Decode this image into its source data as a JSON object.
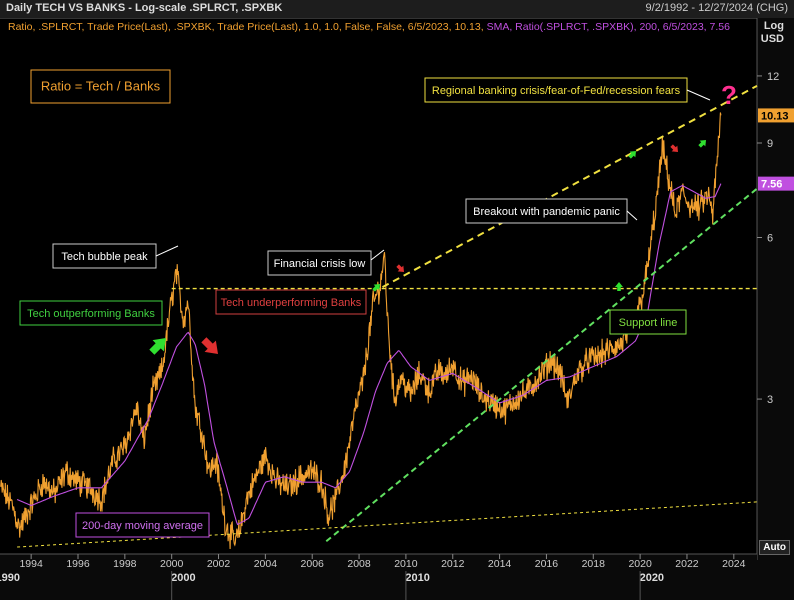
{
  "header": {
    "title": "Daily TECH VS BANKS - Log-scale .SPLRCT, .SPXBK",
    "date_range": "9/2/1992 - 12/27/2024 (CHG)"
  },
  "legend": {
    "series_line": "Ratio, .SPLRCT, Trade Price(Last), .SPXBK, Trade Price(Last),  1.0, 1.0, False, False, 6/5/2023, 10.13,",
    "sma_line": "SMA, Ratio(.SPLRCT, .SPXBK),  200, 6/5/2023, 7.56"
  },
  "axis": {
    "unit_top": "Log",
    "unit_bottom": "USD",
    "auto_button": "Auto"
  },
  "colors": {
    "ratio": "#f0a030",
    "sma": "#c050e0",
    "resistance": "#f0e040",
    "support": "#60e060",
    "up_arrow": "#30e030",
    "down_arrow": "#e03030"
  },
  "chart_data": {
    "type": "line",
    "y_scale": "log",
    "ylim": [
      1.55,
      14
    ],
    "xlim": [
      1992.67,
      2024.99
    ],
    "y_ticks": [
      3,
      6,
      9,
      12
    ],
    "x_year_ticks": [
      "1994",
      "1996",
      "1998",
      "2000",
      "2002",
      "2004",
      "2006",
      "2008",
      "2010",
      "2012",
      "2014",
      "2016",
      "2018",
      "2020",
      "2022",
      "2024"
    ],
    "x_decade_labels": [
      "1990",
      "2000",
      "2010",
      "2020"
    ],
    "last_values": {
      "ratio": "10.13",
      "sma": "7.56"
    },
    "ratio_anchors": [
      [
        1992.7,
        2.05
      ],
      [
        1993.2,
        1.9
      ],
      [
        1993.5,
        1.72
      ],
      [
        1994.0,
        1.9
      ],
      [
        1994.5,
        2.1
      ],
      [
        1995.0,
        2.0
      ],
      [
        1995.5,
        2.2
      ],
      [
        1996.0,
        2.1
      ],
      [
        1996.5,
        2.05
      ],
      [
        1997.0,
        1.95
      ],
      [
        1997.5,
        2.3
      ],
      [
        1998.0,
        2.45
      ],
      [
        1998.5,
        2.9
      ],
      [
        1998.8,
        2.5
      ],
      [
        1999.2,
        3.1
      ],
      [
        1999.6,
        3.4
      ],
      [
        1999.9,
        4.3
      ],
      [
        2000.2,
        5.2
      ],
      [
        2000.5,
        4.2
      ],
      [
        2000.7,
        4.6
      ],
      [
        2001.0,
        2.9
      ],
      [
        2001.3,
        2.6
      ],
      [
        2001.6,
        2.2
      ],
      [
        2001.9,
        2.3
      ],
      [
        2002.3,
        1.75
      ],
      [
        2002.7,
        1.62
      ],
      [
        2002.9,
        1.7
      ],
      [
        2003.2,
        1.95
      ],
      [
        2003.6,
        2.15
      ],
      [
        2004.0,
        2.35
      ],
      [
        2004.5,
        2.1
      ],
      [
        2005.0,
        2.05
      ],
      [
        2005.5,
        2.15
      ],
      [
        2006.0,
        2.2
      ],
      [
        2006.4,
        2.1
      ],
      [
        2006.7,
        1.82
      ],
      [
        2007.0,
        1.95
      ],
      [
        2007.4,
        2.25
      ],
      [
        2007.8,
        2.8
      ],
      [
        2008.2,
        3.3
      ],
      [
        2008.6,
        4.5
      ],
      [
        2008.9,
        4.9
      ],
      [
        2009.1,
        5.6
      ],
      [
        2009.2,
        4.3
      ],
      [
        2009.5,
        3.0
      ],
      [
        2009.8,
        3.3
      ],
      [
        2010.2,
        3.05
      ],
      [
        2010.6,
        3.35
      ],
      [
        2011.0,
        3.1
      ],
      [
        2011.4,
        3.4
      ],
      [
        2011.7,
        3.3
      ],
      [
        2012.0,
        3.5
      ],
      [
        2012.4,
        3.2
      ],
      [
        2012.8,
        3.3
      ],
      [
        2013.2,
        3.05
      ],
      [
        2013.7,
        2.95
      ],
      [
        2014.2,
        2.85
      ],
      [
        2014.7,
        3.0
      ],
      [
        2015.2,
        3.1
      ],
      [
        2015.7,
        3.3
      ],
      [
        2016.2,
        3.55
      ],
      [
        2016.6,
        3.35
      ],
      [
        2016.9,
        2.95
      ],
      [
        2017.3,
        3.35
      ],
      [
        2017.8,
        3.55
      ],
      [
        2018.2,
        3.6
      ],
      [
        2018.7,
        3.7
      ],
      [
        2019.2,
        3.8
      ],
      [
        2019.6,
        4.05
      ],
      [
        2020.0,
        4.5
      ],
      [
        2020.3,
        5.2
      ],
      [
        2020.7,
        7.0
      ],
      [
        2020.95,
        8.8
      ],
      [
        2021.2,
        7.8
      ],
      [
        2021.5,
        6.6
      ],
      [
        2021.8,
        7.3
      ],
      [
        2022.1,
        6.9
      ],
      [
        2022.5,
        6.8
      ],
      [
        2022.9,
        7.2
      ],
      [
        2023.1,
        6.6
      ],
      [
        2023.3,
        8.5
      ],
      [
        2023.45,
        10.13
      ]
    ],
    "sma_anchors": [
      [
        1993.4,
        1.95
      ],
      [
        1994.0,
        1.9
      ],
      [
        1995.0,
        1.98
      ],
      [
        1996.0,
        2.05
      ],
      [
        1997.0,
        2.05
      ],
      [
        1998.0,
        2.3
      ],
      [
        1999.0,
        2.75
      ],
      [
        1999.6,
        3.2
      ],
      [
        2000.2,
        3.75
      ],
      [
        2000.7,
        4.0
      ],
      [
        2001.0,
        3.8
      ],
      [
        2001.4,
        3.2
      ],
      [
        2001.8,
        2.5
      ],
      [
        2002.3,
        2.1
      ],
      [
        2002.8,
        1.75
      ],
      [
        2003.3,
        1.8
      ],
      [
        2004.0,
        2.1
      ],
      [
        2004.8,
        2.15
      ],
      [
        2005.6,
        2.1
      ],
      [
        2006.4,
        2.1
      ],
      [
        2007.0,
        2.05
      ],
      [
        2007.6,
        2.2
      ],
      [
        2008.2,
        2.6
      ],
      [
        2008.7,
        3.1
      ],
      [
        2009.2,
        3.5
      ],
      [
        2009.7,
        3.7
      ],
      [
        2010.2,
        3.45
      ],
      [
        2011.0,
        3.25
      ],
      [
        2012.0,
        3.35
      ],
      [
        2013.0,
        3.15
      ],
      [
        2014.0,
        2.95
      ],
      [
        2015.0,
        3.05
      ],
      [
        2016.0,
        3.25
      ],
      [
        2017.0,
        3.3
      ],
      [
        2018.0,
        3.45
      ],
      [
        2019.0,
        3.6
      ],
      [
        2019.8,
        3.85
      ],
      [
        2020.3,
        4.3
      ],
      [
        2020.8,
        5.8
      ],
      [
        2021.3,
        7.3
      ],
      [
        2021.8,
        7.5
      ],
      [
        2022.3,
        7.3
      ],
      [
        2022.8,
        7.1
      ],
      [
        2023.2,
        7.15
      ],
      [
        2023.45,
        7.56
      ]
    ],
    "trendlines": [
      {
        "name": "resistance",
        "from": [
          2009.0,
          4.85
        ],
        "to": [
          2024.99,
          11.5
        ]
      },
      {
        "name": "bubble-peak-horizontal",
        "from": [
          2000.0,
          4.82
        ],
        "to": [
          2024.99,
          4.82
        ]
      },
      {
        "name": "support",
        "from": [
          2006.6,
          1.63
        ],
        "to": [
          2024.99,
          7.4
        ]
      },
      {
        "name": "long-term-base",
        "from": [
          1993.4,
          1.59
        ],
        "to": [
          2024.99,
          1.93
        ]
      }
    ],
    "annotations": [
      {
        "key": "ratio_box",
        "text": "Ratio = Tech / Banks"
      },
      {
        "key": "tech_bubble",
        "text": "Tech bubble peak"
      },
      {
        "key": "outperform",
        "text": "Tech outperforming Banks"
      },
      {
        "key": "underperform",
        "text": "Tech underperforming Banks"
      },
      {
        "key": "fin_crisis",
        "text": "Financial crisis low"
      },
      {
        "key": "breakout",
        "text": "Breakout with pandemic panic"
      },
      {
        "key": "regional",
        "text": "Regional banking crisis/fear-of-Fed/recession fears"
      },
      {
        "key": "support",
        "text": "Support line"
      },
      {
        "key": "sma200",
        "text": "200-day moving average"
      },
      {
        "key": "question",
        "text": "?"
      }
    ]
  }
}
